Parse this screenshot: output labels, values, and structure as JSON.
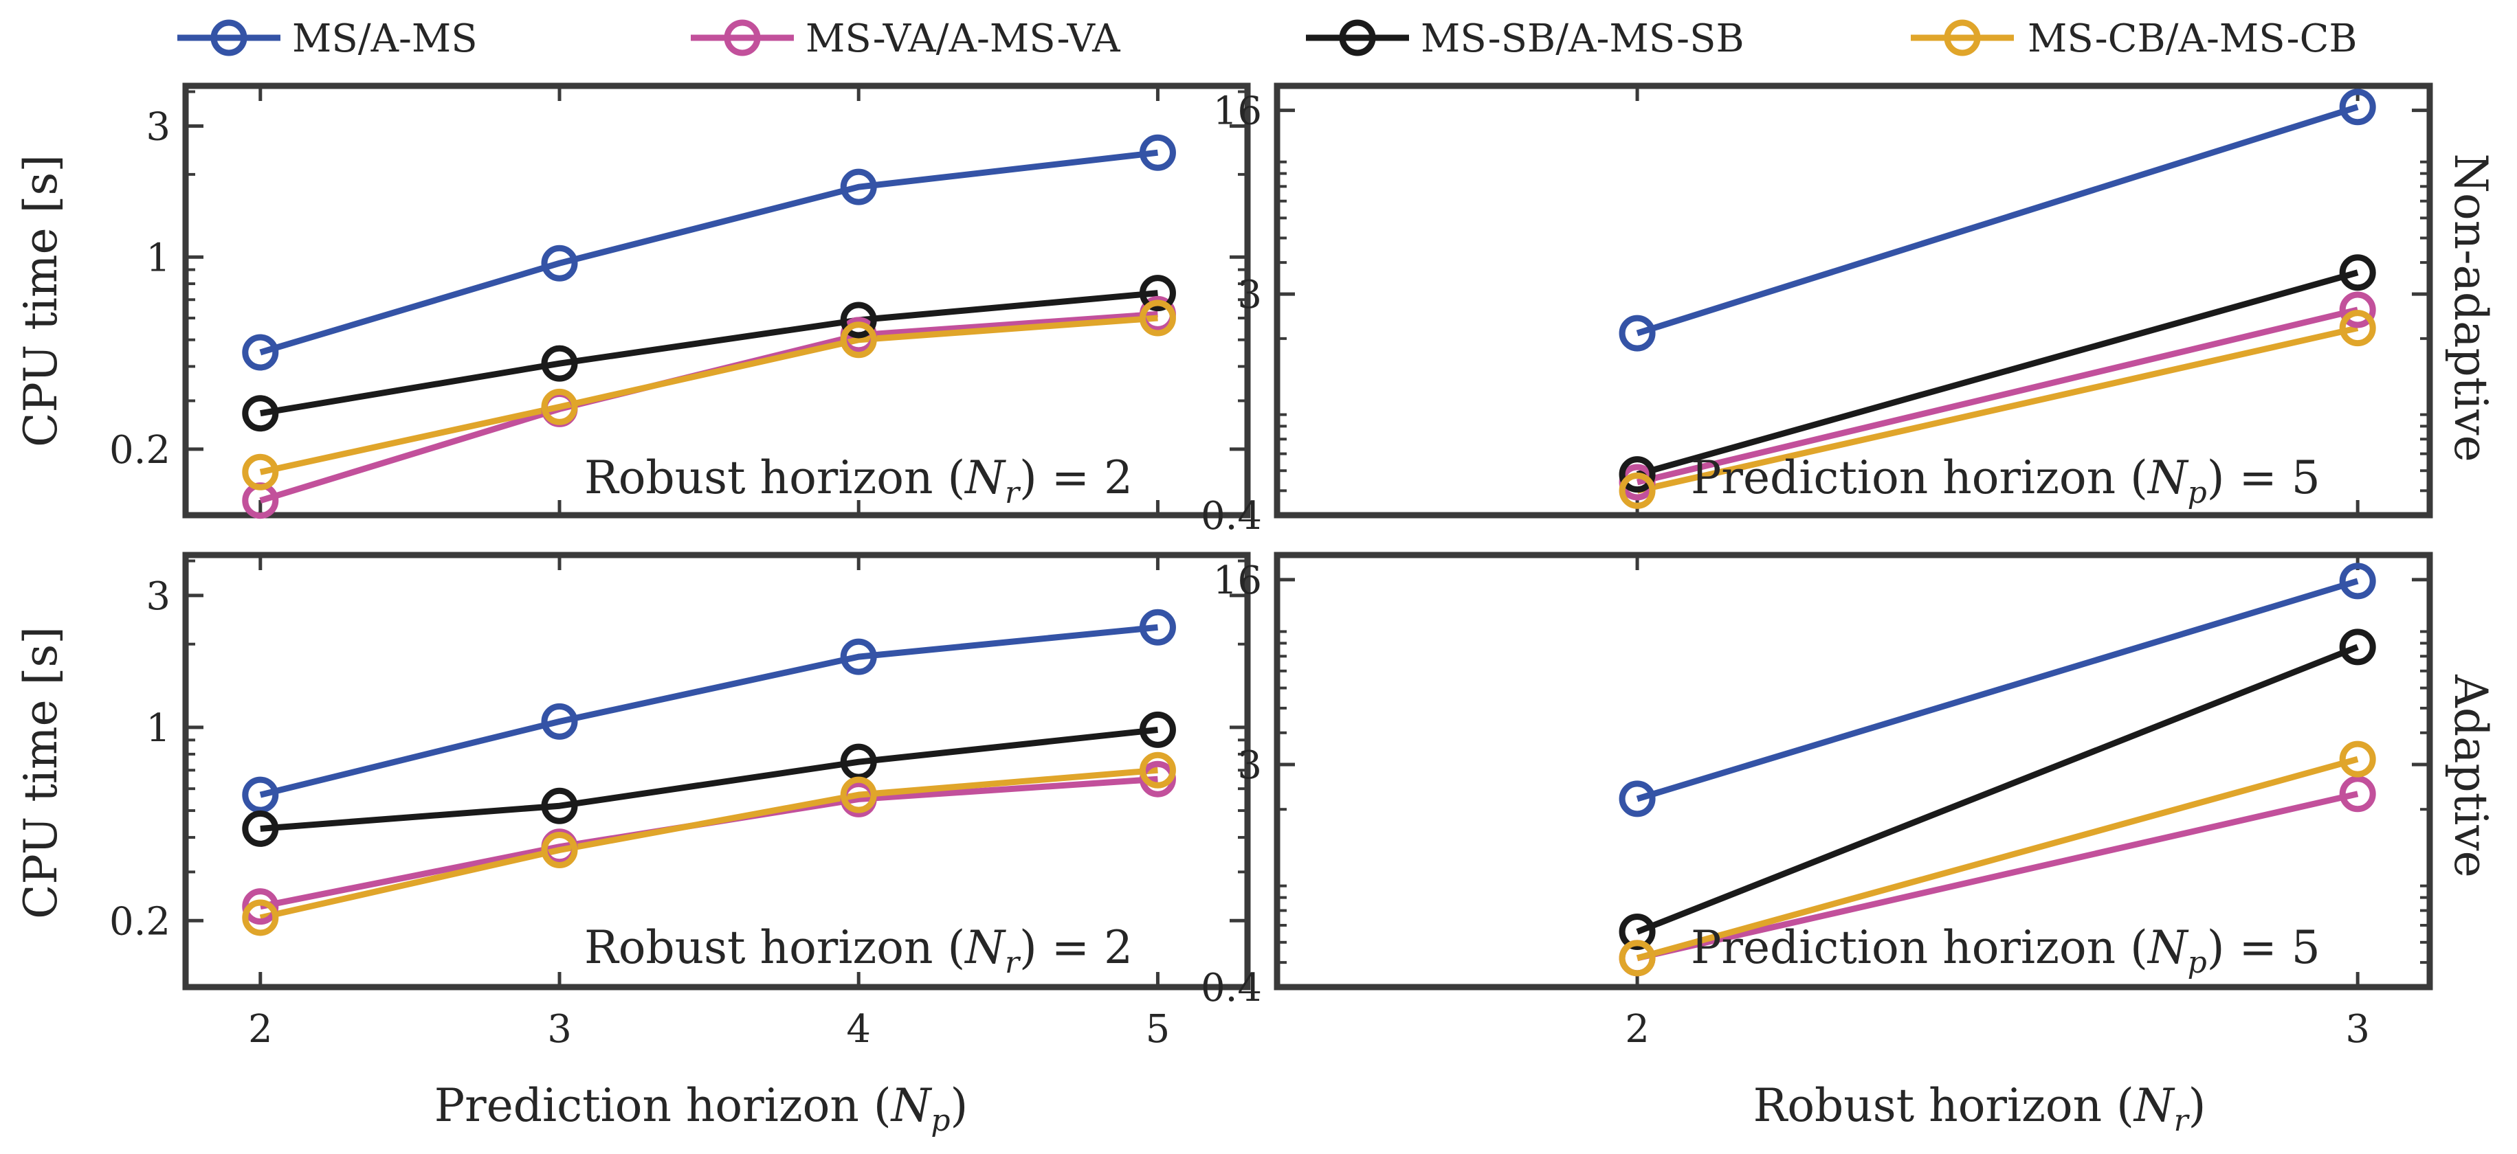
{
  "chart_data": [
    {
      "type": "line",
      "panel": "top-left",
      "row": "Non-adaptive",
      "x": [
        2,
        3,
        4,
        5
      ],
      "xlim": [
        1.75,
        5.3
      ],
      "ylim": [
        0.115,
        4.2
      ],
      "yscale": "log",
      "yticks": [
        0.2,
        1,
        3
      ],
      "ytick_labels": [
        "0.2",
        "1",
        "3"
      ],
      "xlabel": "",
      "ylabel": "CPU time [s]",
      "annotation": "Robust horizon (N_r) = 2",
      "series": [
        {
          "name": "MS/A-MS",
          "values": [
            0.45,
            0.95,
            1.8,
            2.4
          ]
        },
        {
          "name": "MS-VA/A-MS-VA",
          "values": [
            0.13,
            0.28,
            0.52,
            0.62
          ]
        },
        {
          "name": "MS-SB/A-MS-SB",
          "values": [
            0.27,
            0.41,
            0.59,
            0.74
          ]
        },
        {
          "name": "MS-CB/A-MS-CB",
          "values": [
            0.165,
            0.285,
            0.5,
            0.6
          ]
        }
      ]
    },
    {
      "type": "line",
      "panel": "top-right",
      "row": "Non-adaptive",
      "x": [
        2,
        3
      ],
      "xlim": [
        1.5,
        3.1
      ],
      "ylim": [
        0.4,
        20
      ],
      "yscale": "log",
      "yticks": [
        0.4,
        3,
        16
      ],
      "ytick_labels": [
        "0.4",
        "3",
        "16"
      ],
      "xlabel": "",
      "ylabel": "",
      "annotation": "Prediction horizon (N_p) = 5",
      "series": [
        {
          "name": "MS/A-MS",
          "values": [
            2.1,
            16.5
          ]
        },
        {
          "name": "MS-VA/A-MS-VA",
          "values": [
            0.54,
            2.6
          ]
        },
        {
          "name": "MS-SB/A-MS-SB",
          "values": [
            0.58,
            3.65
          ]
        },
        {
          "name": "MS-CB/A-MS-CB",
          "values": [
            0.5,
            2.2
          ]
        }
      ]
    },
    {
      "type": "line",
      "panel": "bottom-left",
      "row": "Adaptive",
      "x": [
        2,
        3,
        4,
        5
      ],
      "xlim": [
        1.75,
        5.3
      ],
      "ylim": [
        0.115,
        4.2
      ],
      "yscale": "log",
      "yticks": [
        0.2,
        1,
        3
      ],
      "ytick_labels": [
        "0.2",
        "1",
        "3"
      ],
      "xticks": [
        2,
        3,
        4,
        5
      ],
      "xtick_labels": [
        "2",
        "3",
        "4",
        "5"
      ],
      "xlabel": "Prediction horizon (N_p)",
      "ylabel": "CPU time [s]",
      "annotation": "Robust horizon (N_r) = 2",
      "series": [
        {
          "name": "MS/A-MS",
          "values": [
            0.57,
            1.05,
            1.8,
            2.3
          ]
        },
        {
          "name": "MS-VA/A-MS-VA",
          "values": [
            0.225,
            0.37,
            0.55,
            0.65
          ]
        },
        {
          "name": "MS-SB/A-MS-SB",
          "values": [
            0.43,
            0.52,
            0.75,
            0.98
          ]
        },
        {
          "name": "MS-CB/A-MS-CB",
          "values": [
            0.205,
            0.36,
            0.57,
            0.7
          ]
        }
      ]
    },
    {
      "type": "line",
      "panel": "bottom-right",
      "row": "Adaptive",
      "x": [
        2,
        3
      ],
      "xlim": [
        1.5,
        3.1
      ],
      "ylim": [
        0.4,
        20
      ],
      "yscale": "log",
      "yticks": [
        0.4,
        3,
        16
      ],
      "ytick_labels": [
        "0.4",
        "3",
        "16"
      ],
      "xticks": [
        2,
        3
      ],
      "xtick_labels": [
        "2",
        "3"
      ],
      "xlabel": "Robust horizon (N_r)",
      "ylabel": "",
      "annotation": "Prediction horizon (N_p) = 5",
      "series": [
        {
          "name": "MS/A-MS",
          "values": [
            2.2,
            15.8
          ]
        },
        {
          "name": "MS-VA/A-MS-VA",
          "values": [
            0.52,
            2.3
          ]
        },
        {
          "name": "MS-SB/A-MS-SB",
          "values": [
            0.66,
            8.7
          ]
        },
        {
          "name": "MS-CB/A-MS-CB",
          "values": [
            0.52,
            3.15
          ]
        }
      ]
    }
  ],
  "legend": {
    "placement": "top",
    "entries": [
      {
        "label": "MS/A-MS",
        "color": "#3453a6"
      },
      {
        "label": "MS-VA/A-MS-VA",
        "color": "#c2509b"
      },
      {
        "label": "MS-SB/A-MS-SB",
        "color": "#1a1a1a"
      },
      {
        "label": "MS-CB/A-MS-CB",
        "color": "#e0a52a"
      }
    ]
  },
  "row_labels": [
    "Non-adaptive",
    "Adaptive"
  ],
  "text": {
    "ylabel": "CPU time [s]",
    "annot_robust_prefix": "Robust horizon (",
    "annot_robust_var": "N",
    "annot_robust_sub": "r",
    "annot_robust_suffix": ") = 2",
    "annot_pred_prefix": "Prediction horizon (",
    "annot_pred_var": "N",
    "annot_pred_sub": "p",
    "annot_pred_suffix": ") = 5",
    "xlabel_left_prefix": "Prediction horizon (",
    "xlabel_left_var": "N",
    "xlabel_left_sub": "p",
    "xlabel_right_prefix": "Robust horizon (",
    "xlabel_right_var": "N",
    "xlabel_right_sub": "r",
    "paren_close": ")"
  }
}
